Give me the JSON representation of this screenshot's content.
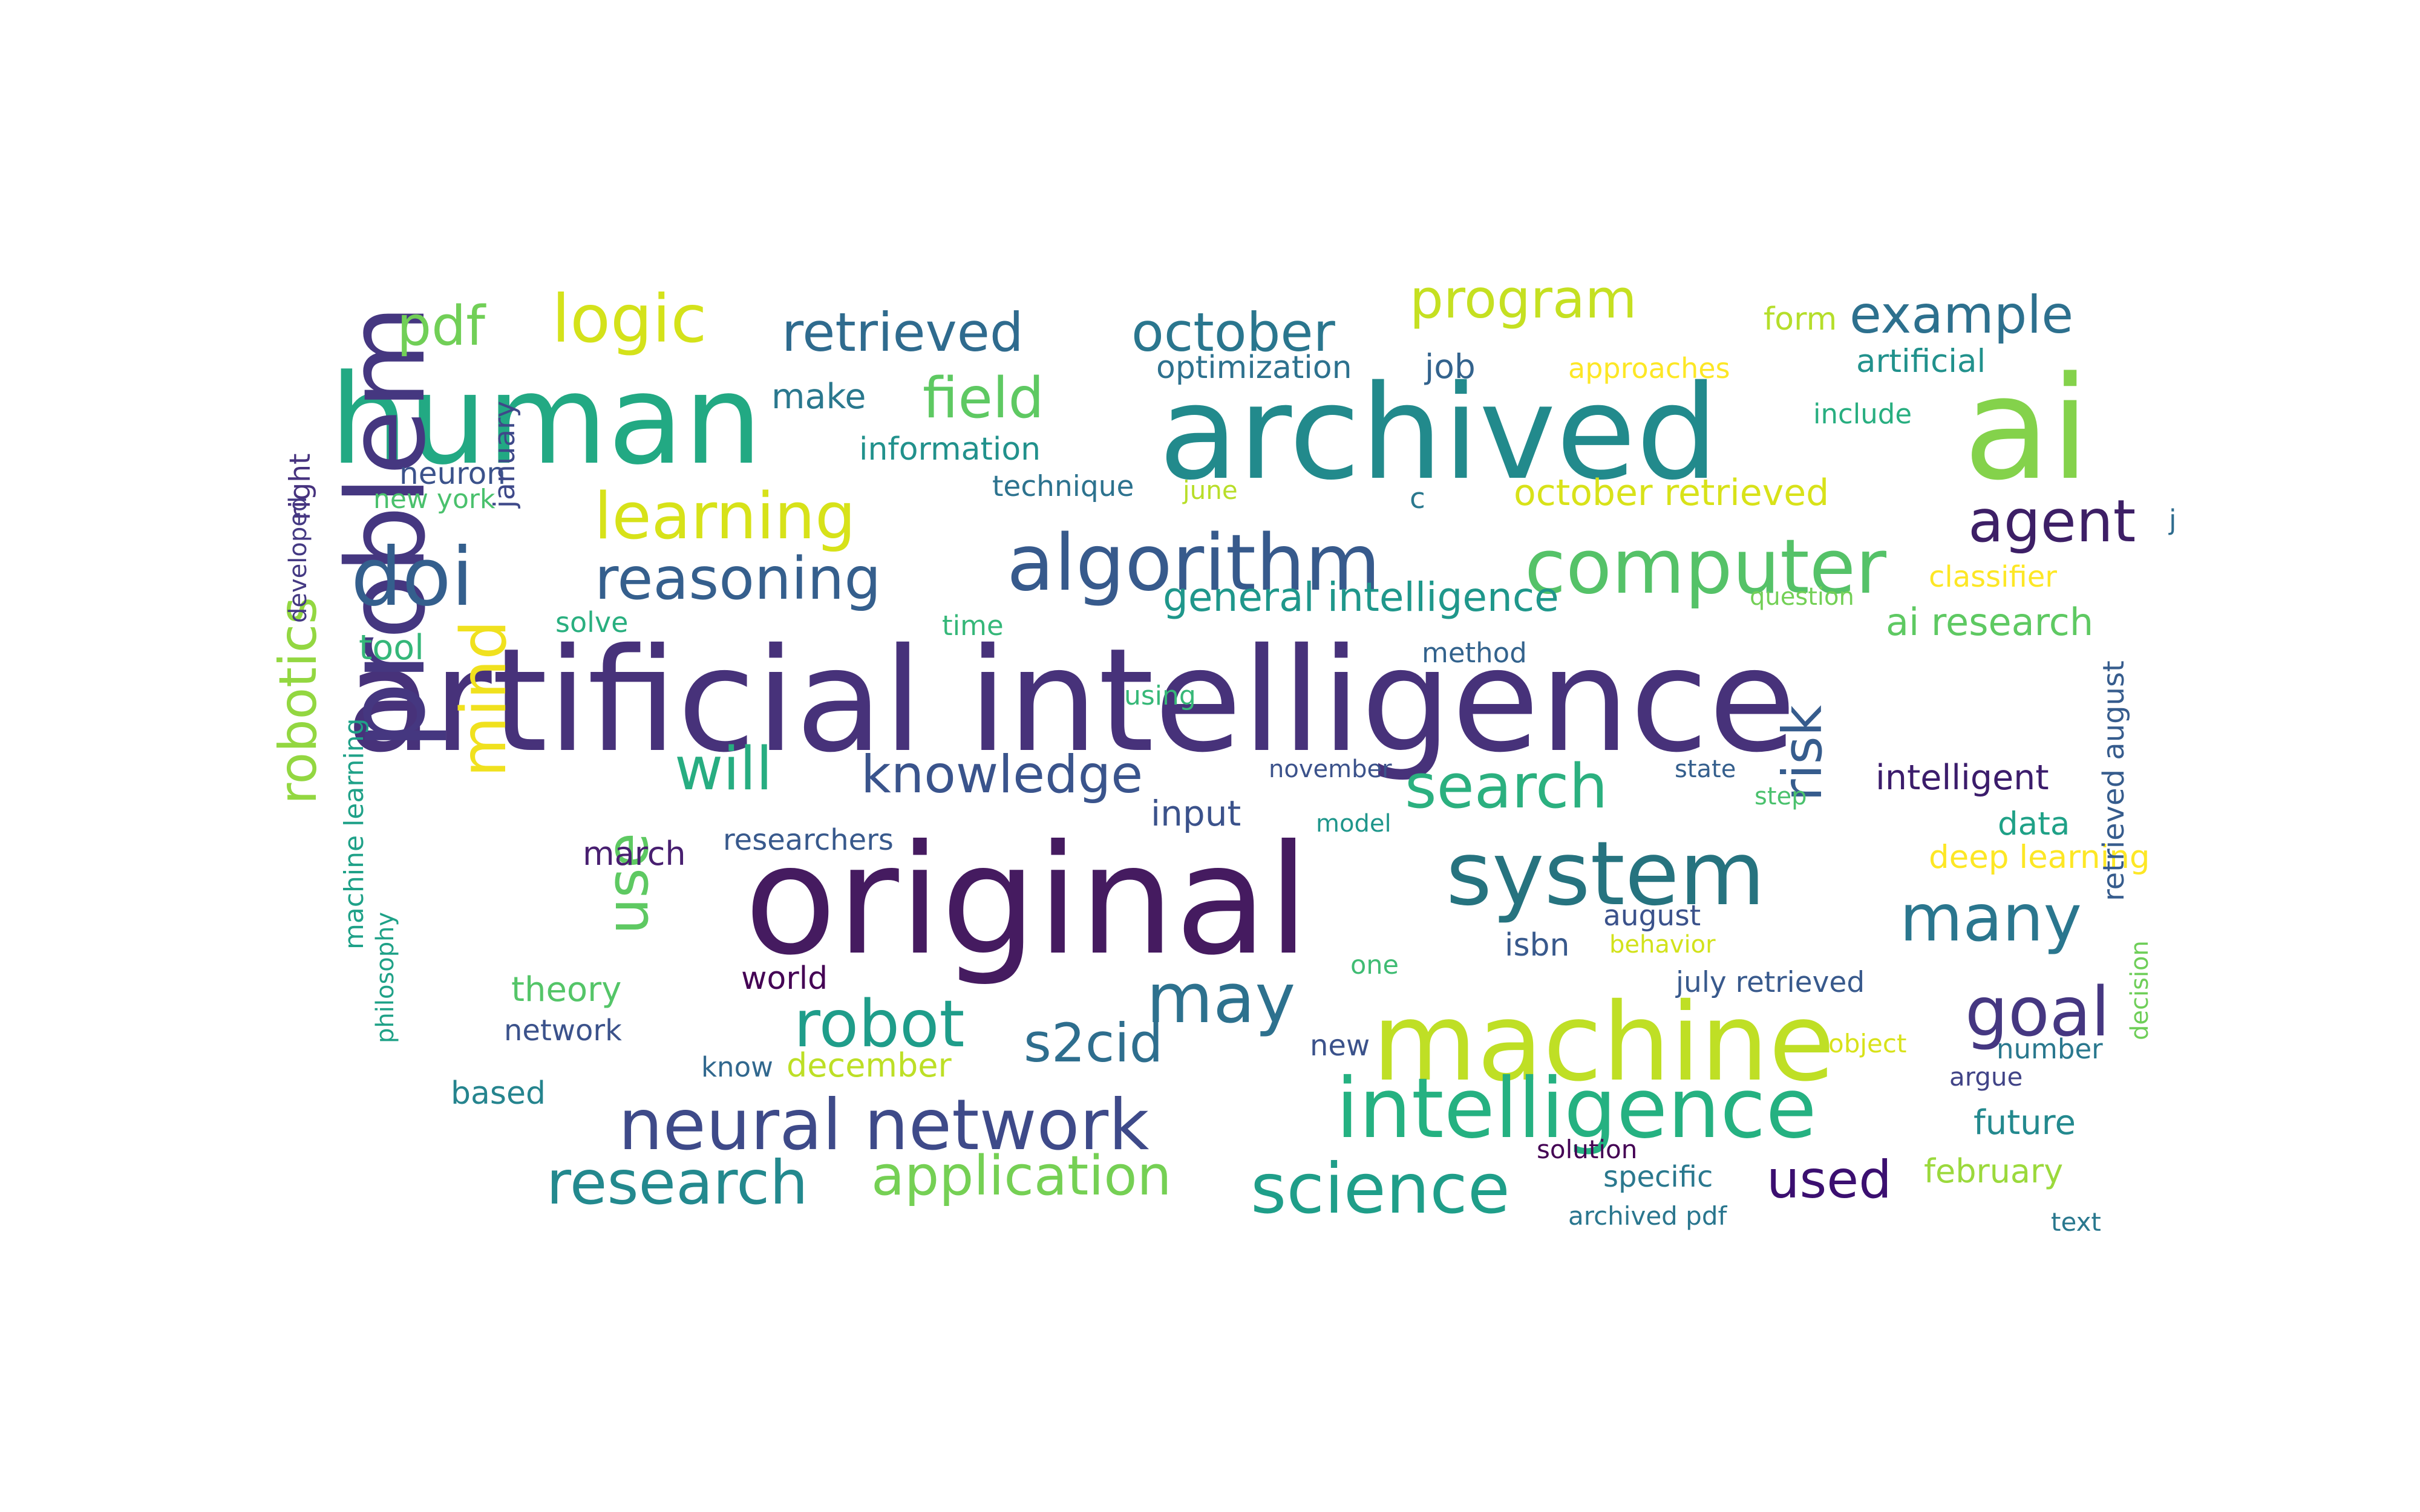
{
  "word_cloud": {
    "words": [
      {
        "text": "artificial intelligence",
        "color": "#47327a"
      },
      {
        "text": "original",
        "color": "#451b60"
      },
      {
        "text": "archived",
        "color": "#228a8c"
      },
      {
        "text": "ai",
        "color": "#84d24b"
      },
      {
        "text": "human",
        "color": "#22a983"
      },
      {
        "text": "machine",
        "color": "#bfdf25"
      },
      {
        "text": "algorithm",
        "color": "#375a8c"
      },
      {
        "text": "intelligence",
        "color": "#25b181"
      },
      {
        "text": "problem",
        "color": "#453780"
      },
      {
        "text": "system",
        "color": "#26737f"
      },
      {
        "text": "computer",
        "color": "#55c268"
      },
      {
        "text": "neural network",
        "color": "#3e4a89"
      },
      {
        "text": "science",
        "color": "#1f9e89"
      },
      {
        "text": "doi",
        "color": "#345f8d"
      },
      {
        "text": "learning",
        "color": "#d7e219"
      },
      {
        "text": "may",
        "color": "#2d718e"
      },
      {
        "text": "research",
        "color": "#23898e"
      },
      {
        "text": "robot",
        "color": "#1f9d8a"
      },
      {
        "text": "many",
        "color": "#2a768e"
      },
      {
        "text": "goal",
        "color": "#453781"
      },
      {
        "text": "mind",
        "color": "#f0e11e"
      },
      {
        "text": "search",
        "color": "#2bb07f"
      },
      {
        "text": "application",
        "color": "#75d054"
      },
      {
        "text": "logic",
        "color": "#d4e21a"
      },
      {
        "text": "program",
        "color": "#c5e021"
      },
      {
        "text": "retrieved",
        "color": "#2f6b8e"
      },
      {
        "text": "october",
        "color": "#2a768e"
      },
      {
        "text": "field",
        "color": "#5ec962"
      },
      {
        "text": "reasoning",
        "color": "#355f8d"
      },
      {
        "text": "agent",
        "color": "#3d1f66"
      },
      {
        "text": "example",
        "color": "#2d708e"
      },
      {
        "text": "use",
        "color": "#5ec962"
      },
      {
        "text": "will",
        "color": "#27ad81"
      },
      {
        "text": "knowledge",
        "color": "#3a548c"
      },
      {
        "text": "s2cid",
        "color": "#2e6e8e"
      },
      {
        "text": "used",
        "color": "#3b0f70"
      },
      {
        "text": "risk",
        "color": "#365c8d"
      },
      {
        "text": "robotics",
        "color": "#93d741"
      },
      {
        "text": "pdf",
        "color": "#71cf57"
      },
      {
        "text": "general intelligence",
        "color": "#1f978b"
      },
      {
        "text": "october retrieved",
        "color": "#d8e219"
      },
      {
        "text": "optimization",
        "color": "#2d718e"
      },
      {
        "text": "information",
        "color": "#21918c"
      },
      {
        "text": "make",
        "color": "#2a788e"
      },
      {
        "text": "job",
        "color": "#33638d"
      },
      {
        "text": "approaches",
        "color": "#fde725"
      },
      {
        "text": "form",
        "color": "#b5de2b"
      },
      {
        "text": "artificial",
        "color": "#21918c"
      },
      {
        "text": "include",
        "color": "#28ae80"
      },
      {
        "text": "neuron",
        "color": "#3b528b"
      },
      {
        "text": "new york",
        "color": "#4ac16d"
      },
      {
        "text": "technique",
        "color": "#2c728e"
      },
      {
        "text": "june",
        "color": "#b8de29"
      },
      {
        "text": "c",
        "color": "#2a788e"
      },
      {
        "text": "classifier",
        "color": "#fde725"
      },
      {
        "text": "question",
        "color": "#73d056"
      },
      {
        "text": "ai research",
        "color": "#5ec962"
      },
      {
        "text": "tool",
        "color": "#35b779"
      },
      {
        "text": "solve",
        "color": "#29af7f"
      },
      {
        "text": "time",
        "color": "#35b779"
      },
      {
        "text": "method",
        "color": "#33638d"
      },
      {
        "text": "using",
        "color": "#37b878"
      },
      {
        "text": "november",
        "color": "#3b528b"
      },
      {
        "text": "state",
        "color": "#355f8d"
      },
      {
        "text": "intelligent",
        "color": "#3b1c6b"
      },
      {
        "text": "step",
        "color": "#4ac16d"
      },
      {
        "text": "input",
        "color": "#3b528b"
      },
      {
        "text": "model",
        "color": "#1f968b"
      },
      {
        "text": "researchers",
        "color": "#38598c"
      },
      {
        "text": "march",
        "color": "#481f70"
      },
      {
        "text": "data",
        "color": "#1fa187"
      },
      {
        "text": "deep learning",
        "color": "#fde725"
      },
      {
        "text": "theory",
        "color": "#54c568"
      },
      {
        "text": "august",
        "color": "#3b528b"
      },
      {
        "text": "isbn",
        "color": "#38598c"
      },
      {
        "text": "behavior",
        "color": "#d2e21b"
      },
      {
        "text": "world",
        "color": "#440154"
      },
      {
        "text": "one",
        "color": "#3fbc73"
      },
      {
        "text": "july retrieved",
        "color": "#38598c"
      },
      {
        "text": "network",
        "color": "#3b528b"
      },
      {
        "text": "know",
        "color": "#31688e"
      },
      {
        "text": "december",
        "color": "#bddf26"
      },
      {
        "text": "new",
        "color": "#3b528b"
      },
      {
        "text": "object",
        "color": "#d8e219"
      },
      {
        "text": "number",
        "color": "#2a788e"
      },
      {
        "text": "argue",
        "color": "#414487"
      },
      {
        "text": "future",
        "color": "#23898e"
      },
      {
        "text": "based",
        "color": "#25848e"
      },
      {
        "text": "solution",
        "color": "#440154"
      },
      {
        "text": "specific",
        "color": "#2a788e"
      },
      {
        "text": "february",
        "color": "#9bd93c"
      },
      {
        "text": "archived pdf",
        "color": "#2a768e"
      },
      {
        "text": "text",
        "color": "#2a788e"
      },
      {
        "text": "right",
        "color": "#46327e"
      },
      {
        "text": "developed",
        "color": "#443983"
      },
      {
        "text": "january",
        "color": "#3e4989"
      },
      {
        "text": "machine learning",
        "color": "#1fa188"
      },
      {
        "text": "philosophy",
        "color": "#1fa187"
      },
      {
        "text": "retrieved august",
        "color": "#365c8d"
      },
      {
        "text": "decision",
        "color": "#6ece58"
      },
      {
        "text": "j",
        "color": "#2f6c8e"
      }
    ]
  }
}
